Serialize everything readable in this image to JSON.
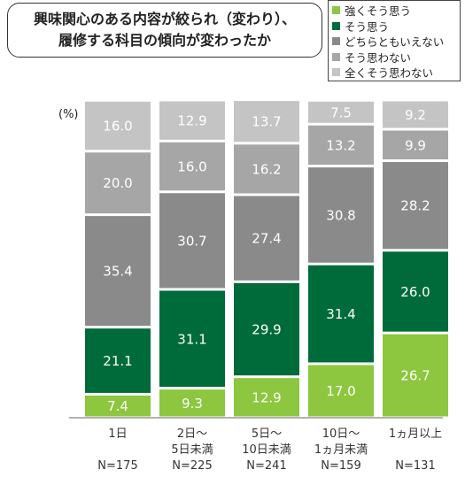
{
  "title": {
    "line1": "興味関心のある内容が絞られ（変わり）、",
    "line2": "履修する科目の傾向が変わったか"
  },
  "unit_label": "(%)",
  "chart_data": {
    "type": "bar",
    "stacked": true,
    "percent": true,
    "categories": [
      "1日",
      "2日～\n5日未満",
      "5日～\n10日未満",
      "10日～\n1ヵ月未満",
      "1ヵ月以上"
    ],
    "n_labels": [
      "N=175",
      "N=225",
      "N=241",
      "N=159",
      "N=131"
    ],
    "ylim": [
      0,
      100
    ],
    "legend_position": "top-right",
    "series": [
      {
        "name": "強くそう思う",
        "color": "#8dc63f",
        "values": [
          7.4,
          9.3,
          12.9,
          17.0,
          26.7
        ]
      },
      {
        "name": "そう思う",
        "color": "#006b3a",
        "values": [
          21.1,
          31.1,
          29.9,
          31.4,
          26.0
        ]
      },
      {
        "name": "どちらともいえない",
        "color": "#8a8a8a",
        "values": [
          35.4,
          30.7,
          27.4,
          30.8,
          28.2
        ]
      },
      {
        "name": "そう思わない",
        "color": "#a6a6a6",
        "values": [
          20.0,
          16.0,
          16.2,
          13.2,
          9.9
        ]
      },
      {
        "name": "全くそう思わない",
        "color": "#c4c4c4",
        "values": [
          16.0,
          12.9,
          13.7,
          7.5,
          9.2
        ]
      }
    ]
  }
}
